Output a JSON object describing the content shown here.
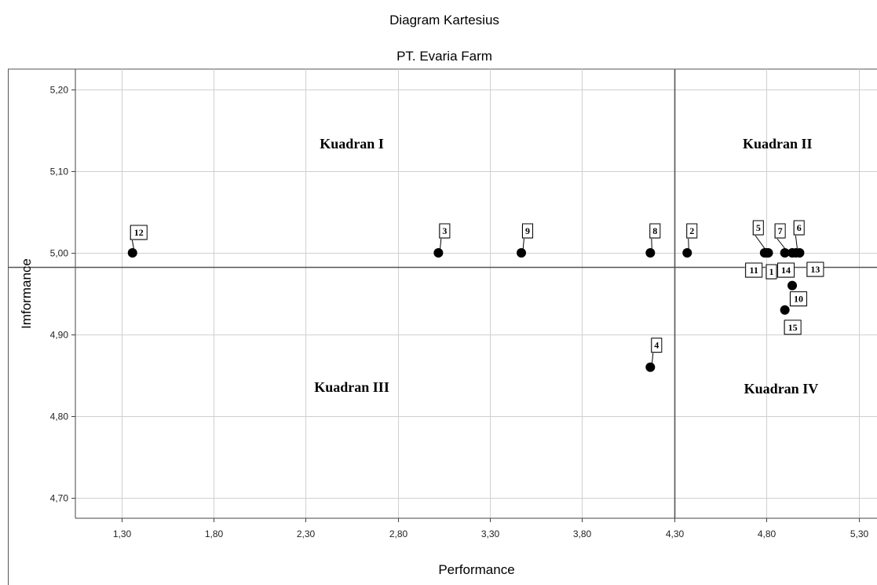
{
  "chart_data": {
    "type": "scatter",
    "title": "Diagram Kartesius",
    "subtitle": "PT. Evaria Farm",
    "xlabel": "Performance",
    "ylabel": "Imformance",
    "xlim": [
      1.05,
      5.4
    ],
    "ylim": [
      4.675,
      5.225
    ],
    "xticks": [
      1.3,
      1.8,
      2.3,
      2.8,
      3.3,
      3.8,
      4.3,
      4.8,
      5.3
    ],
    "xtick_labels": [
      "1,30",
      "1,80",
      "2,30",
      "2,80",
      "3,30",
      "3,80",
      "4,30",
      "4,80",
      "5,30"
    ],
    "yticks": [
      4.7,
      4.8,
      4.9,
      5.0,
      5.1,
      5.2
    ],
    "ytick_labels": [
      "4,70",
      "4,80",
      "4,90",
      "5,00",
      "5,10",
      "5,20"
    ],
    "grid": true,
    "reference_lines": {
      "x": 4.3,
      "y": 4.983
    },
    "quadrants": [
      {
        "label": "Kuadran I",
        "x": 2.55,
        "y": 5.128
      },
      {
        "label": "Kuadran II",
        "x": 4.86,
        "y": 5.128
      },
      {
        "label": "Kuadran III",
        "x": 2.55,
        "y": 4.83
      },
      {
        "label": "Kuadran IV",
        "x": 4.88,
        "y": 4.828
      }
    ],
    "points": [
      {
        "id": "1",
        "x": 4.81,
        "y": 5.0
      },
      {
        "id": "2",
        "x": 4.37,
        "y": 5.0
      },
      {
        "id": "3",
        "x": 3.02,
        "y": 5.0
      },
      {
        "id": "4",
        "x": 4.17,
        "y": 4.86
      },
      {
        "id": "5",
        "x": 4.79,
        "y": 5.0
      },
      {
        "id": "6",
        "x": 4.96,
        "y": 5.0
      },
      {
        "id": "7",
        "x": 4.9,
        "y": 5.0
      },
      {
        "id": "8",
        "x": 4.17,
        "y": 5.0
      },
      {
        "id": "9",
        "x": 3.47,
        "y": 5.0
      },
      {
        "id": "10",
        "x": 4.94,
        "y": 4.96
      },
      {
        "id": "11",
        "x": 4.8,
        "y": 5.0
      },
      {
        "id": "12",
        "x": 1.36,
        "y": 5.0
      },
      {
        "id": "13",
        "x": 4.98,
        "y": 5.0
      },
      {
        "id": "14",
        "x": 4.94,
        "y": 5.0
      },
      {
        "id": "15",
        "x": 4.9,
        "y": 4.93
      }
    ]
  }
}
